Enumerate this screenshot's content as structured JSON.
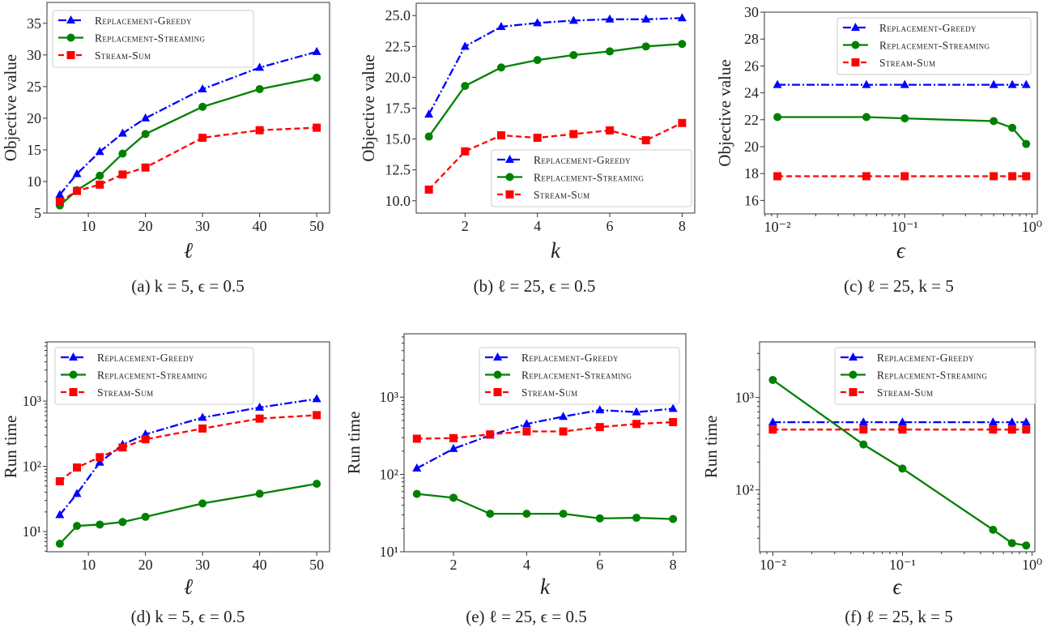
{
  "colors": {
    "greedy": "#0000ff",
    "streaming": "#008000",
    "stream_sum": "#ff0000"
  },
  "chart_data": [
    {
      "type": "line",
      "caption": "(a) k = 5, ϵ = 0.5",
      "xlabel": "ℓ",
      "ylabel": "Objective value",
      "xscale": "linear",
      "yscale": "linear",
      "xlim": [
        2.75,
        52.25
      ],
      "ylim": [
        5,
        38.3
      ],
      "xticks": [
        10,
        20,
        30,
        40,
        50
      ],
      "xtick_labels": [
        "10",
        "20",
        "30",
        "40",
        "50"
      ],
      "yticks": [
        5,
        10,
        15,
        20,
        25,
        30,
        35
      ],
      "ytick_labels": [
        "5",
        "10",
        "15",
        "20",
        "25",
        "30",
        "35"
      ],
      "legend": "upper-left",
      "grid": false,
      "x": [
        5,
        8,
        12,
        16,
        20,
        30,
        40,
        50
      ],
      "series": [
        {
          "name": "Replacement-Greedy",
          "marker": "triangle",
          "style": "dash-dot",
          "values": [
            7.9,
            11.2,
            14.7,
            17.6,
            20.0,
            24.6,
            28.0,
            30.5
          ]
        },
        {
          "name": "Replacement-Streaming",
          "marker": "circle",
          "style": "solid",
          "values": [
            6.2,
            8.6,
            10.9,
            14.4,
            17.5,
            21.8,
            24.6,
            26.4
          ]
        },
        {
          "name": "Stream-Sum",
          "marker": "square",
          "style": "dashed",
          "values": [
            6.8,
            8.5,
            9.5,
            11.1,
            12.2,
            16.9,
            18.1,
            18.5
          ]
        }
      ]
    },
    {
      "type": "line",
      "caption": "(b) ℓ = 25, ϵ = 0.5",
      "xlabel": "k",
      "ylabel": "Objective value",
      "xscale": "linear",
      "yscale": "linear",
      "xlim": [
        0.65,
        8.35
      ],
      "ylim": [
        9.0,
        26.0
      ],
      "xticks": [
        2,
        4,
        6,
        8
      ],
      "xtick_labels": [
        "2",
        "4",
        "6",
        "8"
      ],
      "yticks": [
        10,
        12.5,
        15,
        17.5,
        20,
        22.5,
        25
      ],
      "ytick_labels": [
        "10.0",
        "12.5",
        "15.0",
        "17.5",
        "20.0",
        "22.5",
        "25.0"
      ],
      "legend": "lower-right",
      "grid": false,
      "x": [
        1,
        2,
        3,
        4,
        5,
        6,
        7,
        8
      ],
      "series": [
        {
          "name": "Replacement-Greedy",
          "marker": "triangle",
          "style": "dash-dot",
          "values": [
            17.0,
            22.5,
            24.1,
            24.4,
            24.6,
            24.7,
            24.7,
            24.8
          ]
        },
        {
          "name": "Replacement-Streaming",
          "marker": "circle",
          "style": "solid",
          "values": [
            15.2,
            19.3,
            20.8,
            21.4,
            21.8,
            22.1,
            22.5,
            22.7
          ]
        },
        {
          "name": "Stream-Sum",
          "marker": "square",
          "style": "dashed",
          "values": [
            10.9,
            14.0,
            15.3,
            15.1,
            15.4,
            15.7,
            14.9,
            16.3
          ]
        }
      ]
    },
    {
      "type": "line",
      "caption": "(c) ℓ = 25, k = 5",
      "xlabel": "ϵ",
      "ylabel": "Objective value",
      "xscale": "log",
      "yscale": "linear",
      "xlim": [
        0.0079,
        1.1
      ],
      "ylim": [
        15,
        30
      ],
      "xticks": [
        0.01,
        0.1,
        1
      ],
      "xtick_labels": [
        "10⁻²",
        "10⁻¹",
        "10⁰"
      ],
      "yticks": [
        16,
        18,
        20,
        22,
        24,
        26,
        28,
        30
      ],
      "ytick_labels": [
        "16",
        "18",
        "20",
        "22",
        "24",
        "26",
        "28",
        "30"
      ],
      "legend": "upper-right",
      "grid": false,
      "x": [
        0.01,
        0.05,
        0.1,
        0.5,
        0.7,
        0.9
      ],
      "series": [
        {
          "name": "Replacement-Greedy",
          "marker": "triangle",
          "style": "dash-dot",
          "values": [
            24.6,
            24.6,
            24.6,
            24.6,
            24.6,
            24.6
          ]
        },
        {
          "name": "Replacement-Streaming",
          "marker": "circle",
          "style": "solid",
          "values": [
            22.2,
            22.2,
            22.1,
            21.9,
            21.4,
            20.2
          ]
        },
        {
          "name": "Stream-Sum",
          "marker": "square",
          "style": "dashed",
          "values": [
            17.8,
            17.8,
            17.8,
            17.8,
            17.8,
            17.8
          ]
        }
      ]
    },
    {
      "type": "line",
      "caption": "(d) k = 5, ϵ = 0.5",
      "xlabel": "ℓ",
      "ylabel": "Run time",
      "xscale": "linear",
      "yscale": "log",
      "xlim": [
        2.75,
        52.25
      ],
      "ylim": [
        4.9,
        8100
      ],
      "xticks": [
        10,
        20,
        30,
        40,
        50
      ],
      "xtick_labels": [
        "10",
        "20",
        "30",
        "40",
        "50"
      ],
      "yticks": [
        10,
        100,
        1000
      ],
      "ytick_labels": [
        "10¹",
        "10²",
        "10³"
      ],
      "legend": "upper-left",
      "grid": false,
      "x": [
        5,
        8,
        12,
        16,
        20,
        30,
        40,
        50
      ],
      "series": [
        {
          "name": "Replacement-Greedy",
          "marker": "triangle",
          "style": "dash-dot",
          "values": [
            18,
            38,
            115,
            215,
            310,
            560,
            800,
            1080
          ]
        },
        {
          "name": "Replacement-Streaming",
          "marker": "circle",
          "style": "solid",
          "values": [
            6.5,
            12.2,
            12.8,
            14,
            16.8,
            27,
            38,
            54
          ]
        },
        {
          "name": "Stream-Sum",
          "marker": "square",
          "style": "dashed",
          "values": [
            59,
            96,
            138,
            195,
            260,
            380,
            540,
            610
          ]
        }
      ]
    },
    {
      "type": "line",
      "caption": "(e) ℓ = 25, ϵ = 0.5",
      "xlabel": "k",
      "ylabel": "Run time",
      "xscale": "linear",
      "yscale": "log",
      "xlim": [
        0.65,
        8.35
      ],
      "ylim": [
        10,
        6600
      ],
      "xticks": [
        2,
        4,
        6,
        8
      ],
      "xtick_labels": [
        "2",
        "4",
        "6",
        "8"
      ],
      "yticks": [
        10,
        100,
        1000
      ],
      "ytick_labels": [
        "10¹",
        "10²",
        "10³"
      ],
      "legend": "upper-right",
      "grid": false,
      "x": [
        1,
        2,
        3,
        4,
        5,
        6,
        7,
        8
      ],
      "series": [
        {
          "name": "Replacement-Greedy",
          "marker": "triangle",
          "style": "dash-dot",
          "values": [
            120,
            215,
            320,
            450,
            560,
            680,
            640,
            710
          ]
        },
        {
          "name": "Replacement-Streaming",
          "marker": "circle",
          "style": "solid",
          "values": [
            56,
            50,
            31,
            31,
            31,
            27,
            27.5,
            26.5
          ]
        },
        {
          "name": "Stream-Sum",
          "marker": "square",
          "style": "dashed",
          "values": [
            290,
            295,
            330,
            360,
            360,
            410,
            450,
            475
          ]
        }
      ]
    },
    {
      "type": "line",
      "caption": "(f) ℓ = 25, k = 5",
      "xlabel": "ϵ",
      "ylabel": "Run time",
      "xscale": "log",
      "yscale": "log",
      "xlim": [
        0.0079,
        1.05
      ],
      "ylim": [
        21.4,
        4000
      ],
      "xticks": [
        0.01,
        0.1,
        1
      ],
      "xtick_labels": [
        "10⁻²",
        "10⁻¹",
        "10⁰"
      ],
      "yticks": [
        100,
        1000
      ],
      "ytick_labels": [
        "10²",
        "10³"
      ],
      "legend": "upper-right",
      "grid": false,
      "x": [
        0.01,
        0.05,
        0.1,
        0.5,
        0.7,
        0.9
      ],
      "series": [
        {
          "name": "Replacement-Greedy",
          "marker": "triangle",
          "style": "dash-dot",
          "values": [
            540,
            540,
            540,
            540,
            540,
            540
          ]
        },
        {
          "name": "Replacement-Streaming",
          "marker": "circle",
          "style": "solid",
          "values": [
            1550,
            310,
            170,
            37,
            26.5,
            25
          ]
        },
        {
          "name": "Stream-Sum",
          "marker": "square",
          "style": "dashed",
          "values": [
            450,
            450,
            450,
            450,
            450,
            450
          ]
        }
      ]
    }
  ]
}
